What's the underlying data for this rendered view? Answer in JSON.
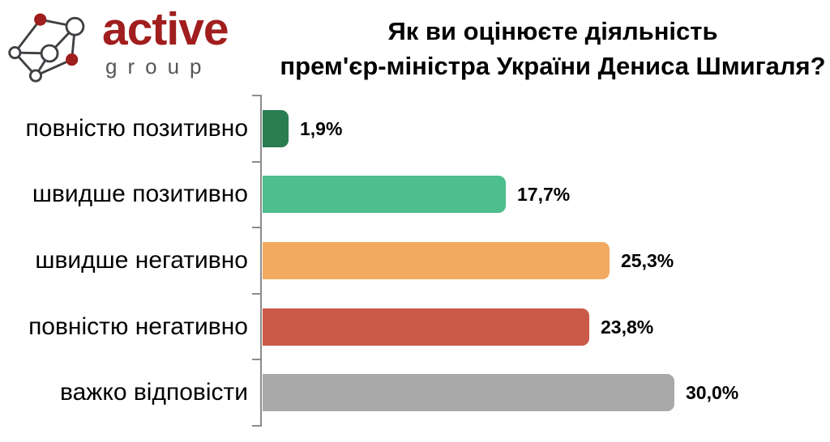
{
  "logo": {
    "name": "active",
    "subname": "group",
    "name_color": "#a11e1e",
    "subname_color": "#55565a",
    "icon_line_color": "#3f4044",
    "icon_node_color": "#9e1e1e"
  },
  "title": {
    "line1": "Як ви оцінюєте діяльність",
    "line2": "прем'єр-міністра України Дениса Шмигаля?"
  },
  "chart_data": {
    "type": "bar",
    "orientation": "horizontal",
    "title": "Як ви оцінюєте діяльність прем'єр-міністра України Дениса Шмигаля?",
    "categories": [
      "повністю позитивно",
      "швидше позитивно",
      "швидше негативно",
      "повністю негативно",
      "важко відповісти"
    ],
    "values": [
      1.9,
      17.7,
      25.3,
      23.8,
      30.0
    ],
    "value_labels": [
      "1,9%",
      "17,7%",
      "25,3%",
      "23,8%",
      "30,0%"
    ],
    "bar_colors": [
      "#2a7d50",
      "#4dbe8c",
      "#f2a960",
      "#ca5a48",
      "#a9a9a9"
    ],
    "axis_color": "#8c8c8c",
    "xlabel": "",
    "ylabel": "",
    "xlim": [
      0,
      30
    ],
    "grid": false,
    "legend": false
  }
}
